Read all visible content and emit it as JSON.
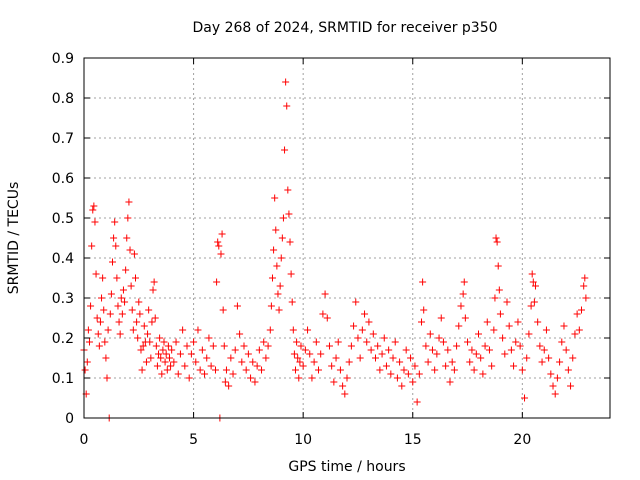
{
  "chart_data": {
    "type": "scatter",
    "title": "Day 268 of 2024, SRMTID for receiver p350",
    "xlabel": "GPS time / hours",
    "ylabel": "SRMTID / TECUs",
    "xlim": [
      0,
      24
    ],
    "ylim": [
      0,
      0.9
    ],
    "xticks": [
      0,
      5,
      10,
      15,
      20
    ],
    "xtick_labels": [
      "0",
      "5",
      "10",
      "15",
      "20"
    ],
    "yticks": [
      0,
      0.1,
      0.2,
      0.3,
      0.4,
      0.5,
      0.6,
      0.7,
      0.8,
      0.9
    ],
    "ytick_labels": [
      "0",
      "0.1",
      "0.2",
      "0.3",
      "0.4",
      "0.5",
      "0.6",
      "0.7",
      "0.8",
      "0.9"
    ],
    "grid": true,
    "marker": "+",
    "color": "#ff0000",
    "series": [
      {
        "name": "SRMTID",
        "points": [
          [
            0.0,
            0.17
          ],
          [
            0.05,
            0.12
          ],
          [
            0.1,
            0.06
          ],
          [
            0.15,
            0.14
          ],
          [
            0.2,
            0.22
          ],
          [
            0.25,
            0.19
          ],
          [
            0.3,
            0.28
          ],
          [
            0.35,
            0.43
          ],
          [
            0.4,
            0.52
          ],
          [
            0.45,
            0.53
          ],
          [
            0.5,
            0.49
          ],
          [
            0.55,
            0.36
          ],
          [
            0.6,
            0.25
          ],
          [
            0.65,
            0.21
          ],
          [
            0.7,
            0.18
          ],
          [
            0.75,
            0.24
          ],
          [
            0.8,
            0.3
          ],
          [
            0.85,
            0.35
          ],
          [
            0.9,
            0.27
          ],
          [
            0.95,
            0.19
          ],
          [
            1.0,
            0.15
          ],
          [
            1.05,
            0.1
          ],
          [
            1.1,
            0.22
          ],
          [
            1.15,
            0.0
          ],
          [
            1.2,
            0.26
          ],
          [
            1.25,
            0.31
          ],
          [
            1.3,
            0.39
          ],
          [
            1.35,
            0.45
          ],
          [
            1.4,
            0.49
          ],
          [
            1.45,
            0.43
          ],
          [
            1.5,
            0.35
          ],
          [
            1.55,
            0.28
          ],
          [
            1.6,
            0.24
          ],
          [
            1.65,
            0.21
          ],
          [
            1.7,
            0.3
          ],
          [
            1.75,
            0.26
          ],
          [
            1.8,
            0.32
          ],
          [
            1.85,
            0.29
          ],
          [
            1.9,
            0.37
          ],
          [
            1.95,
            0.45
          ],
          [
            2.0,
            0.5
          ],
          [
            2.05,
            0.54
          ],
          [
            2.1,
            0.42
          ],
          [
            2.15,
            0.33
          ],
          [
            2.2,
            0.27
          ],
          [
            2.25,
            0.22
          ],
          [
            2.3,
            0.41
          ],
          [
            2.35,
            0.35
          ],
          [
            2.4,
            0.24
          ],
          [
            2.45,
            0.2
          ],
          [
            2.5,
            0.29
          ],
          [
            2.55,
            0.26
          ],
          [
            2.6,
            0.17
          ],
          [
            2.65,
            0.12
          ],
          [
            2.7,
            0.18
          ],
          [
            2.75,
            0.23
          ],
          [
            2.8,
            0.19
          ],
          [
            2.85,
            0.14
          ],
          [
            2.9,
            0.21
          ],
          [
            2.95,
            0.27
          ],
          [
            3.0,
            0.19
          ],
          [
            3.05,
            0.15
          ],
          [
            3.1,
            0.24
          ],
          [
            3.15,
            0.32
          ],
          [
            3.2,
            0.34
          ],
          [
            3.25,
            0.25
          ],
          [
            3.3,
            0.18
          ],
          [
            3.35,
            0.13
          ],
          [
            3.4,
            0.16
          ],
          [
            3.45,
            0.2
          ],
          [
            3.5,
            0.15
          ],
          [
            3.55,
            0.11
          ],
          [
            3.6,
            0.17
          ],
          [
            3.65,
            0.19
          ],
          [
            3.7,
            0.14
          ],
          [
            3.75,
            0.16
          ],
          [
            3.8,
            0.12
          ],
          [
            3.85,
            0.18
          ],
          [
            3.9,
            0.15
          ],
          [
            3.95,
            0.13
          ],
          [
            4.0,
            0.17
          ],
          [
            4.1,
            0.14
          ],
          [
            4.2,
            0.19
          ],
          [
            4.3,
            0.11
          ],
          [
            4.4,
            0.16
          ],
          [
            4.5,
            0.22
          ],
          [
            4.6,
            0.13
          ],
          [
            4.7,
            0.18
          ],
          [
            4.8,
            0.1
          ],
          [
            4.9,
            0.16
          ],
          [
            5.0,
            0.19
          ],
          [
            5.1,
            0.14
          ],
          [
            5.2,
            0.22
          ],
          [
            5.3,
            0.12
          ],
          [
            5.4,
            0.17
          ],
          [
            5.5,
            0.11
          ],
          [
            5.6,
            0.15
          ],
          [
            5.7,
            0.2
          ],
          [
            5.8,
            0.13
          ],
          [
            5.9,
            0.18
          ],
          [
            6.0,
            0.12
          ],
          [
            6.05,
            0.34
          ],
          [
            6.1,
            0.44
          ],
          [
            6.15,
            0.43
          ],
          [
            6.2,
            0.0
          ],
          [
            6.25,
            0.41
          ],
          [
            6.3,
            0.46
          ],
          [
            6.35,
            0.27
          ],
          [
            6.4,
            0.18
          ],
          [
            6.45,
            0.09
          ],
          [
            6.5,
            0.12
          ],
          [
            6.6,
            0.08
          ],
          [
            6.7,
            0.15
          ],
          [
            6.8,
            0.11
          ],
          [
            6.9,
            0.17
          ],
          [
            7.0,
            0.28
          ],
          [
            7.1,
            0.21
          ],
          [
            7.2,
            0.14
          ],
          [
            7.3,
            0.18
          ],
          [
            7.4,
            0.12
          ],
          [
            7.5,
            0.16
          ],
          [
            7.6,
            0.1
          ],
          [
            7.7,
            0.14
          ],
          [
            7.8,
            0.09
          ],
          [
            7.9,
            0.13
          ],
          [
            8.0,
            0.17
          ],
          [
            8.1,
            0.12
          ],
          [
            8.2,
            0.19
          ],
          [
            8.3,
            0.15
          ],
          [
            8.4,
            0.18
          ],
          [
            8.5,
            0.22
          ],
          [
            8.55,
            0.28
          ],
          [
            8.6,
            0.35
          ],
          [
            8.65,
            0.42
          ],
          [
            8.7,
            0.55
          ],
          [
            8.75,
            0.47
          ],
          [
            8.8,
            0.38
          ],
          [
            8.85,
            0.31
          ],
          [
            8.9,
            0.27
          ],
          [
            8.95,
            0.33
          ],
          [
            9.0,
            0.4
          ],
          [
            9.05,
            0.45
          ],
          [
            9.1,
            0.5
          ],
          [
            9.15,
            0.67
          ],
          [
            9.2,
            0.84
          ],
          [
            9.25,
            0.78
          ],
          [
            9.3,
            0.57
          ],
          [
            9.35,
            0.51
          ],
          [
            9.4,
            0.44
          ],
          [
            9.45,
            0.36
          ],
          [
            9.5,
            0.29
          ],
          [
            9.55,
            0.22
          ],
          [
            9.6,
            0.16
          ],
          [
            9.65,
            0.12
          ],
          [
            9.7,
            0.19
          ],
          [
            9.75,
            0.15
          ],
          [
            9.8,
            0.1
          ],
          [
            9.85,
            0.14
          ],
          [
            9.9,
            0.18
          ],
          [
            10.0,
            0.13
          ],
          [
            10.1,
            0.17
          ],
          [
            10.2,
            0.22
          ],
          [
            10.3,
            0.16
          ],
          [
            10.4,
            0.1
          ],
          [
            10.5,
            0.14
          ],
          [
            10.6,
            0.19
          ],
          [
            10.7,
            0.12
          ],
          [
            10.8,
            0.16
          ],
          [
            10.9,
            0.26
          ],
          [
            11.0,
            0.31
          ],
          [
            11.1,
            0.25
          ],
          [
            11.2,
            0.18
          ],
          [
            11.3,
            0.13
          ],
          [
            11.4,
            0.09
          ],
          [
            11.5,
            0.15
          ],
          [
            11.6,
            0.19
          ],
          [
            11.7,
            0.12
          ],
          [
            11.8,
            0.08
          ],
          [
            11.9,
            0.06
          ],
          [
            12.0,
            0.1
          ],
          [
            12.1,
            0.14
          ],
          [
            12.2,
            0.18
          ],
          [
            12.3,
            0.23
          ],
          [
            12.4,
            0.29
          ],
          [
            12.5,
            0.2
          ],
          [
            12.6,
            0.15
          ],
          [
            12.7,
            0.22
          ],
          [
            12.8,
            0.26
          ],
          [
            12.9,
            0.19
          ],
          [
            13.0,
            0.24
          ],
          [
            13.1,
            0.17
          ],
          [
            13.2,
            0.21
          ],
          [
            13.3,
            0.15
          ],
          [
            13.4,
            0.18
          ],
          [
            13.5,
            0.12
          ],
          [
            13.6,
            0.16
          ],
          [
            13.7,
            0.2
          ],
          [
            13.8,
            0.13
          ],
          [
            13.9,
            0.17
          ],
          [
            14.0,
            0.11
          ],
          [
            14.1,
            0.15
          ],
          [
            14.2,
            0.19
          ],
          [
            14.3,
            0.1
          ],
          [
            14.4,
            0.14
          ],
          [
            14.5,
            0.08
          ],
          [
            14.6,
            0.12
          ],
          [
            14.7,
            0.17
          ],
          [
            14.8,
            0.11
          ],
          [
            14.9,
            0.15
          ],
          [
            15.0,
            0.09
          ],
          [
            15.1,
            0.13
          ],
          [
            15.2,
            0.04
          ],
          [
            15.3,
            0.11
          ],
          [
            15.4,
            0.24
          ],
          [
            15.45,
            0.34
          ],
          [
            15.5,
            0.27
          ],
          [
            15.6,
            0.18
          ],
          [
            15.7,
            0.14
          ],
          [
            15.8,
            0.21
          ],
          [
            15.9,
            0.17
          ],
          [
            16.0,
            0.12
          ],
          [
            16.1,
            0.16
          ],
          [
            16.2,
            0.2
          ],
          [
            16.3,
            0.25
          ],
          [
            16.4,
            0.19
          ],
          [
            16.5,
            0.13
          ],
          [
            16.6,
            0.17
          ],
          [
            16.7,
            0.09
          ],
          [
            16.8,
            0.14
          ],
          [
            16.9,
            0.12
          ],
          [
            17.0,
            0.18
          ],
          [
            17.1,
            0.23
          ],
          [
            17.2,
            0.28
          ],
          [
            17.3,
            0.31
          ],
          [
            17.35,
            0.34
          ],
          [
            17.4,
            0.25
          ],
          [
            17.5,
            0.19
          ],
          [
            17.6,
            0.14
          ],
          [
            17.7,
            0.17
          ],
          [
            17.8,
            0.12
          ],
          [
            17.9,
            0.16
          ],
          [
            18.0,
            0.21
          ],
          [
            18.1,
            0.15
          ],
          [
            18.2,
            0.11
          ],
          [
            18.3,
            0.18
          ],
          [
            18.4,
            0.24
          ],
          [
            18.5,
            0.17
          ],
          [
            18.6,
            0.13
          ],
          [
            18.7,
            0.22
          ],
          [
            18.75,
            0.3
          ],
          [
            18.8,
            0.45
          ],
          [
            18.85,
            0.44
          ],
          [
            18.9,
            0.38
          ],
          [
            18.95,
            0.32
          ],
          [
            19.0,
            0.26
          ],
          [
            19.1,
            0.2
          ],
          [
            19.2,
            0.16
          ],
          [
            19.3,
            0.29
          ],
          [
            19.4,
            0.23
          ],
          [
            19.5,
            0.17
          ],
          [
            19.6,
            0.13
          ],
          [
            19.7,
            0.19
          ],
          [
            19.8,
            0.24
          ],
          [
            19.9,
            0.18
          ],
          [
            20.0,
            0.12
          ],
          [
            20.1,
            0.05
          ],
          [
            20.2,
            0.15
          ],
          [
            20.3,
            0.21
          ],
          [
            20.4,
            0.28
          ],
          [
            20.45,
            0.36
          ],
          [
            20.5,
            0.34
          ],
          [
            20.55,
            0.29
          ],
          [
            20.6,
            0.33
          ],
          [
            20.7,
            0.24
          ],
          [
            20.8,
            0.18
          ],
          [
            20.9,
            0.14
          ],
          [
            21.0,
            0.17
          ],
          [
            21.1,
            0.22
          ],
          [
            21.2,
            0.15
          ],
          [
            21.3,
            0.11
          ],
          [
            21.4,
            0.08
          ],
          [
            21.5,
            0.06
          ],
          [
            21.6,
            0.1
          ],
          [
            21.7,
            0.14
          ],
          [
            21.8,
            0.19
          ],
          [
            21.9,
            0.23
          ],
          [
            22.0,
            0.17
          ],
          [
            22.1,
            0.12
          ],
          [
            22.2,
            0.08
          ],
          [
            22.3,
            0.15
          ],
          [
            22.4,
            0.21
          ],
          [
            22.5,
            0.26
          ],
          [
            22.6,
            0.22
          ],
          [
            22.7,
            0.27
          ],
          [
            22.8,
            0.33
          ],
          [
            22.85,
            0.35
          ],
          [
            22.9,
            0.3
          ]
        ]
      }
    ]
  }
}
